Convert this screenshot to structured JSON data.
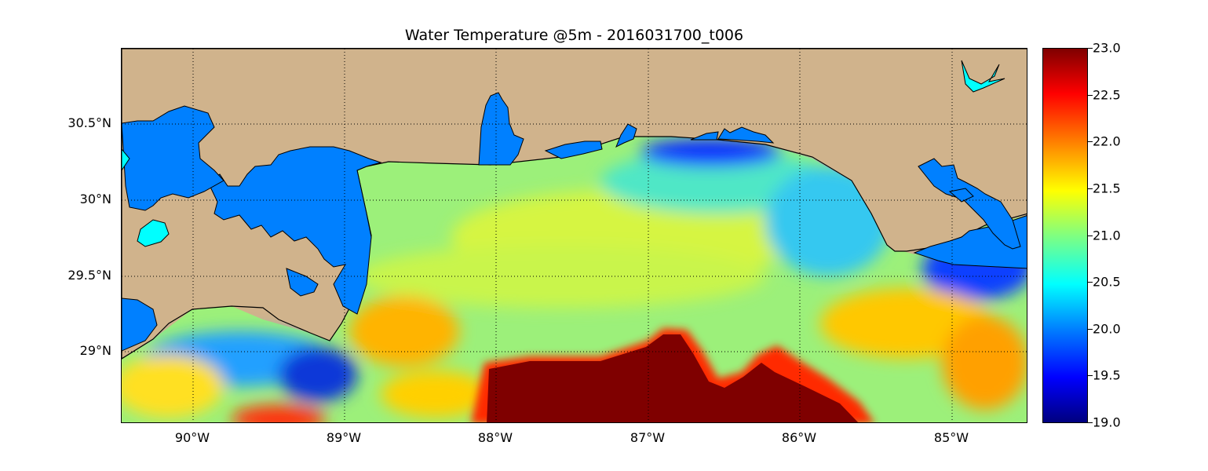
{
  "title": "Water Temperature @5m - 2016031700_t006",
  "lat_labels": [
    "30.5°N",
    "30°N",
    "29.5°N",
    "29°N"
  ],
  "lon_labels": [
    "90°W",
    "89°W",
    "88°W",
    "87°W",
    "86°W",
    "85°W"
  ],
  "colorbar": {
    "ticks": [
      "23.0",
      "22.5",
      "22.0",
      "21.5",
      "21.0",
      "20.5",
      "20.0",
      "19.5",
      "19.0"
    ],
    "min": 19.0,
    "max": 23.0,
    "colors": [
      "#00007f",
      "#0000ff",
      "#0080ff",
      "#00ffff",
      "#80ff80",
      "#ffff00",
      "#ff8000",
      "#ff0000",
      "#7f0000"
    ]
  },
  "land_color": "#d0b38c",
  "inland_water_color": "#0080ff",
  "lake_color": "#00ffff"
}
